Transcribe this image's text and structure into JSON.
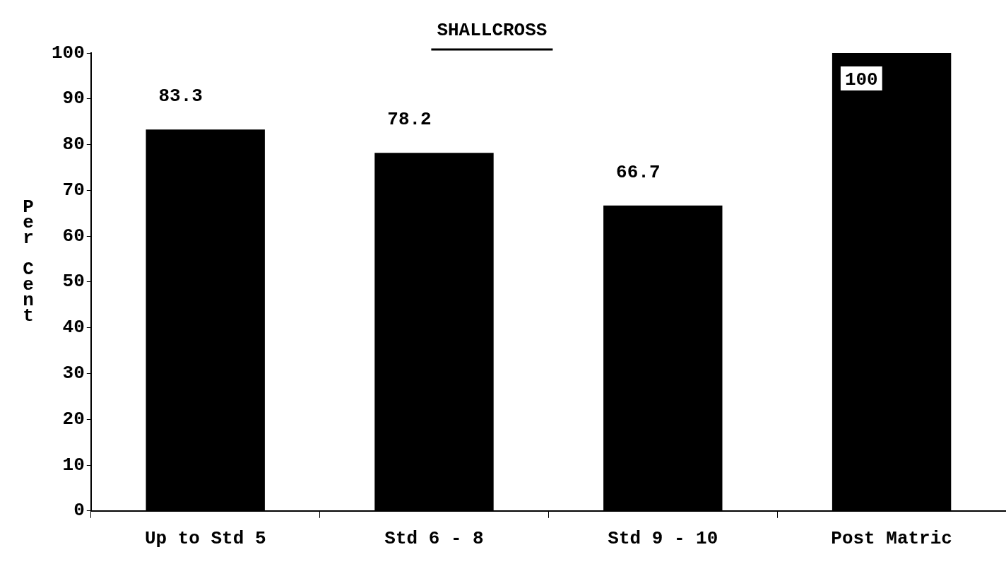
{
  "chart_data": {
    "type": "bar",
    "title": "SHALLCROSS",
    "ylabel": "Per Cent",
    "categories": [
      "Up to Std 5",
      "Std 6 - 8",
      "Std 9 - 10",
      "Post Matric"
    ],
    "values": [
      83.3,
      78.2,
      66.7,
      100
    ],
    "color": "#000000",
    "ylim": [
      0,
      100
    ],
    "yticks": [
      0,
      10,
      20,
      30,
      40,
      50,
      60,
      70,
      80,
      90,
      100
    ],
    "data_labels": true,
    "grid": false,
    "legend": false
  }
}
